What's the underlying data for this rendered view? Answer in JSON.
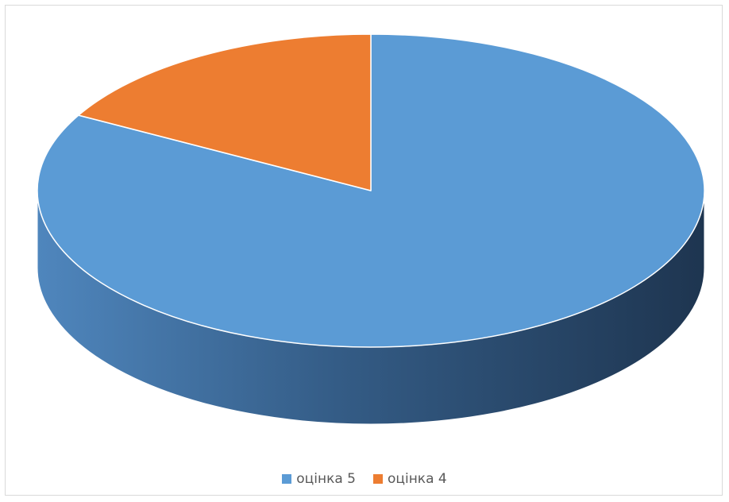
{
  "chart_data": {
    "type": "pie",
    "title": "",
    "categories": [
      "оцінка 5",
      "оцінка 4"
    ],
    "values": [
      83,
      17
    ],
    "colors": [
      "#5b9bd5",
      "#ed7d31"
    ],
    "legend_position": "bottom",
    "style": "3d"
  }
}
